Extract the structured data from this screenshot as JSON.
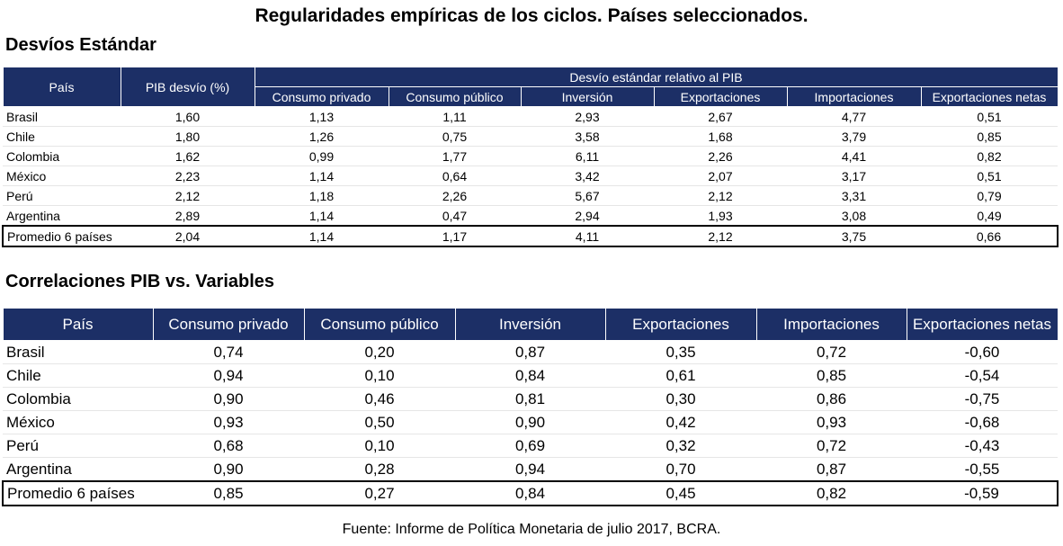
{
  "title": "Regularidades empíricas de los ciclos. Países seleccionados.",
  "std_section": {
    "title": "Desvíos Estándar",
    "header": {
      "country": "País",
      "gdp": "PIB desvío (%)",
      "relative_group": "Desvío estándar relativo al PIB",
      "columns": [
        "Consumo privado",
        "Consumo público",
        "Inversión",
        "Exportaciones",
        "Importaciones",
        "Exportaciones netas"
      ]
    },
    "rows": [
      {
        "country": "Brasil",
        "values": [
          "1,60",
          "1,13",
          "1,11",
          "2,93",
          "2,67",
          "4,77",
          "0,51"
        ]
      },
      {
        "country": "Chile",
        "values": [
          "1,80",
          "1,26",
          "0,75",
          "3,58",
          "1,68",
          "3,79",
          "0,85"
        ]
      },
      {
        "country": "Colombia",
        "values": [
          "1,62",
          "0,99",
          "1,77",
          "6,11",
          "2,26",
          "4,41",
          "0,82"
        ]
      },
      {
        "country": "México",
        "values": [
          "2,23",
          "1,14",
          "0,64",
          "3,42",
          "2,07",
          "3,17",
          "0,51"
        ]
      },
      {
        "country": "Perú",
        "values": [
          "2,12",
          "1,18",
          "2,26",
          "5,67",
          "2,12",
          "3,31",
          "0,79"
        ]
      },
      {
        "country": "Argentina",
        "values": [
          "2,89",
          "1,14",
          "0,47",
          "2,94",
          "1,93",
          "3,08",
          "0,49"
        ]
      }
    ],
    "average": {
      "country": "Promedio 6 países",
      "values": [
        "2,04",
        "1,14",
        "1,17",
        "4,11",
        "2,12",
        "3,75",
        "0,66"
      ]
    }
  },
  "corr_section": {
    "title": "Correlaciones  PIB vs. Variables",
    "header": {
      "country": "País",
      "columns": [
        "Consumo privado",
        "Consumo público",
        "Inversión",
        "Exportaciones",
        "Importaciones",
        "Exportaciones netas"
      ]
    },
    "rows": [
      {
        "country": "Brasil",
        "values": [
          "0,74",
          "0,20",
          "0,87",
          "0,35",
          "0,72",
          "-0,60"
        ]
      },
      {
        "country": "Chile",
        "values": [
          "0,94",
          "0,10",
          "0,84",
          "0,61",
          "0,85",
          "-0,54"
        ]
      },
      {
        "country": "Colombia",
        "values": [
          "0,90",
          "0,46",
          "0,81",
          "0,30",
          "0,86",
          "-0,75"
        ]
      },
      {
        "country": "México",
        "values": [
          "0,93",
          "0,50",
          "0,90",
          "0,42",
          "0,93",
          "-0,68"
        ]
      },
      {
        "country": "Perú",
        "values": [
          "0,68",
          "0,10",
          "0,69",
          "0,32",
          "0,72",
          "-0,43"
        ]
      },
      {
        "country": "Argentina",
        "values": [
          "0,90",
          "0,28",
          "0,94",
          "0,70",
          "0,87",
          "-0,55"
        ]
      }
    ],
    "average": {
      "country": "Promedio 6 países",
      "values": [
        "0,85",
        "0,27",
        "0,84",
        "0,45",
        "0,82",
        "-0,59"
      ]
    }
  },
  "source": "Fuente: Informe de Política Monetaria de julio 2017, BCRA.",
  "colors": {
    "header_bg": "#1c2f66",
    "header_text": "#ffffff"
  }
}
